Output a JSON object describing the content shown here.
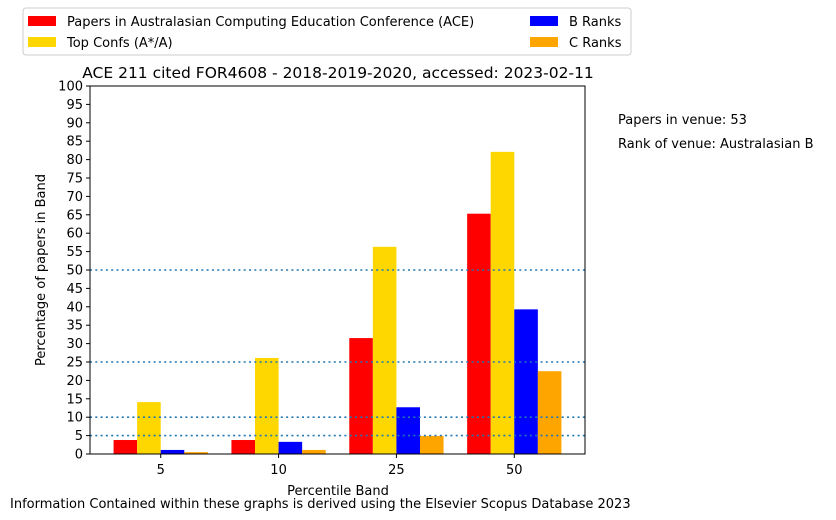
{
  "chart_data": {
    "type": "bar",
    "title": "ACE 211 cited FOR4608 - 2018-2019-2020, accessed: 2023-02-11",
    "xlabel": "Percentile Band",
    "ylabel": "Percentage of papers in Band",
    "categories": [
      "5",
      "10",
      "25",
      "50"
    ],
    "ylim": [
      0,
      100
    ],
    "yticks": [
      0,
      5,
      10,
      15,
      20,
      25,
      30,
      35,
      40,
      45,
      50,
      55,
      60,
      65,
      70,
      75,
      80,
      85,
      90,
      95,
      100
    ],
    "reference_lines": [
      5,
      10,
      25,
      50
    ],
    "grid": false,
    "legend_position": "top",
    "series": [
      {
        "name": "Papers in Australasian Computing Education Conference (ACE)",
        "color": "#ff0000",
        "values": [
          3.8,
          3.8,
          31.5,
          65.3
        ]
      },
      {
        "name": "Top Confs (A*/A)",
        "color": "#ffd700",
        "values": [
          14.1,
          26.1,
          56.3,
          82.1
        ]
      },
      {
        "name": "B Ranks",
        "color": "#0000ff",
        "values": [
          1.1,
          3.3,
          12.7,
          39.3
        ]
      },
      {
        "name": "C Ranks",
        "color": "#ffa500",
        "values": [
          0.5,
          1.1,
          4.9,
          22.5
        ]
      }
    ],
    "annotations": [
      "Papers in venue: 53",
      "Rank of venue: Australasian B"
    ],
    "footer": "Information Contained within these graphs is derived using the Elsevier Scopus Database 2023"
  }
}
